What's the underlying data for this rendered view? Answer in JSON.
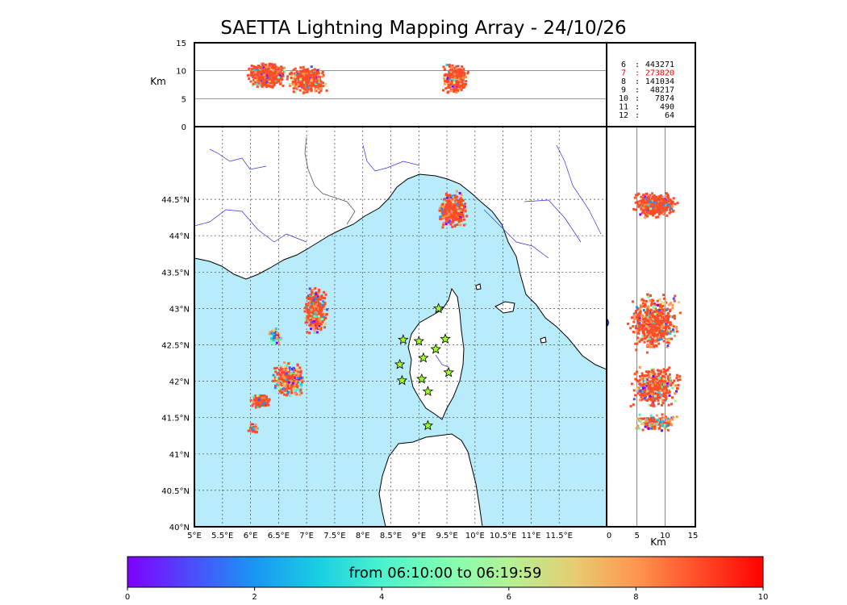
{
  "title": "SAETTA Lightning Mapping Array - 24/10/26",
  "colors": {
    "sea": "#b8ecfa",
    "land": "#ffffff",
    "rivers": "#3030e0",
    "border": "#555555",
    "station": "#a0ff20",
    "highlight": "#ff0000"
  },
  "icons": {
    "station": "star-icon"
  },
  "height_panel": {
    "ylabel": "Km",
    "yticks": [
      "0",
      "5",
      "10",
      "15"
    ]
  },
  "side_panel": {
    "xlabel": "Km",
    "xticks": [
      "0",
      "5",
      "10",
      "15"
    ]
  },
  "map": {
    "lon_ticks": [
      "5°E",
      "5.5°E",
      "6°E",
      "6.5°E",
      "7°E",
      "7.5°E",
      "8°E",
      "8.5°E",
      "9°E",
      "9.5°E",
      "10°E",
      "10.5°E",
      "11°E",
      "11.5°E"
    ],
    "lat_ticks": [
      "40°N",
      "40.5°N",
      "41°N",
      "41.5°N",
      "42°N",
      "42.5°N",
      "43°N",
      "43.5°N",
      "44°N",
      "44.5°N"
    ],
    "lon_range": [
      5,
      12
    ],
    "lat_range": [
      40,
      45
    ],
    "stations": [
      {
        "lon": 9.35,
        "lat": 43.0
      },
      {
        "lon": 8.72,
        "lat": 42.57
      },
      {
        "lon": 9.0,
        "lat": 42.55
      },
      {
        "lon": 9.47,
        "lat": 42.58
      },
      {
        "lon": 9.3,
        "lat": 42.44
      },
      {
        "lon": 9.08,
        "lat": 42.32
      },
      {
        "lon": 8.66,
        "lat": 42.23
      },
      {
        "lon": 9.53,
        "lat": 42.12
      },
      {
        "lon": 8.7,
        "lat": 42.01
      },
      {
        "lon": 9.05,
        "lat": 42.03
      },
      {
        "lon": 9.16,
        "lat": 41.86
      },
      {
        "lon": 9.16,
        "lat": 41.39
      }
    ]
  },
  "legend": [
    {
      "num": "6",
      "count": "443271",
      "highlight": false
    },
    {
      "num": "7",
      "count": "273820",
      "highlight": true
    },
    {
      "num": "8",
      "count": "141034",
      "highlight": false
    },
    {
      "num": "9",
      "count": "48217",
      "highlight": false
    },
    {
      "num": "10",
      "count": "7874",
      "highlight": false
    },
    {
      "num": "11",
      "count": "490",
      "highlight": false
    },
    {
      "num": "12",
      "count": "64",
      "highlight": false
    }
  ],
  "colorbar": {
    "label": "from 06:10:00 to 06:19:59",
    "ticks": [
      "0",
      "2",
      "4",
      "6",
      "8",
      "10"
    ],
    "range": [
      0,
      10
    ]
  }
}
